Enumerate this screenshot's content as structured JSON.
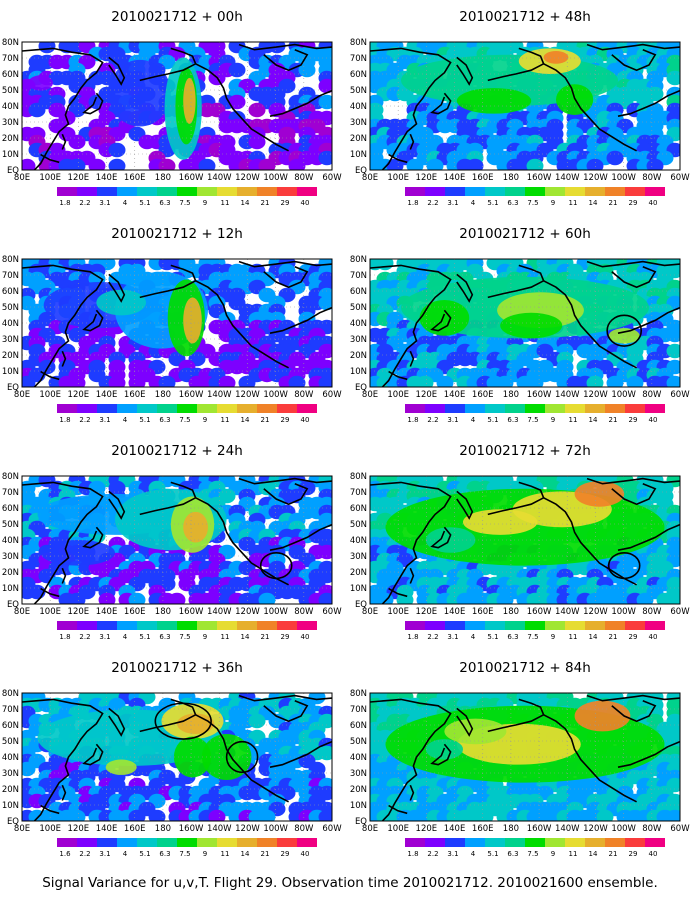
{
  "panels": [
    {
      "title": "2010021712 + 00h",
      "intensity": 0.15,
      "circles": []
    },
    {
      "title": "2010021712 + 48h",
      "intensity": 0.55,
      "circles": []
    },
    {
      "title": "2010021712 + 12h",
      "intensity": 0.25,
      "circles": []
    },
    {
      "title": "2010021712 + 60h",
      "intensity": 0.6,
      "circles": [
        "east-pacific"
      ]
    },
    {
      "title": "2010021712 + 24h",
      "intensity": 0.35,
      "circles": [
        "east-pacific-low"
      ]
    },
    {
      "title": "2010021712 + 72h",
      "intensity": 0.7,
      "circles": [
        "east-pacific-low"
      ]
    },
    {
      "title": "2010021712 + 36h",
      "intensity": 0.45,
      "circles": [
        "gulf-of-alaska",
        "west-coast"
      ]
    },
    {
      "title": "2010021712 + 84h",
      "intensity": 0.75,
      "circles": []
    }
  ],
  "lat_labels": [
    "80N",
    "70N",
    "60N",
    "50N",
    "40N",
    "30N",
    "20N",
    "10N",
    "EQ"
  ],
  "lon_labels": [
    "80E",
    "100E",
    "120E",
    "140E",
    "160E",
    "180",
    "160W",
    "140W",
    "120W",
    "100W",
    "80W",
    "60W"
  ],
  "colorbar": {
    "labels": [
      "1.8",
      "2.2",
      "3.1",
      "4",
      "5.1",
      "6.3",
      "7.5",
      "9",
      "11",
      "14",
      "21",
      "29",
      "40"
    ],
    "labels_last_panel": [
      "1.6",
      "2.2",
      "3.1",
      "4",
      "5.1",
      "6.3",
      "7.5",
      "9",
      "11",
      "14",
      "21",
      "29",
      "40"
    ],
    "colors": [
      "#a000d2",
      "#7d00ff",
      "#1e3cff",
      "#00a0ff",
      "#00c8c8",
      "#00d28c",
      "#00dc00",
      "#a0e632",
      "#e6dc32",
      "#e6af2d",
      "#f08228",
      "#fa3c3c",
      "#f00082"
    ]
  },
  "caption": "Signal Variance for u,v,T. Flight 29. Observation time 2010021712. 2010021600 ensemble."
}
